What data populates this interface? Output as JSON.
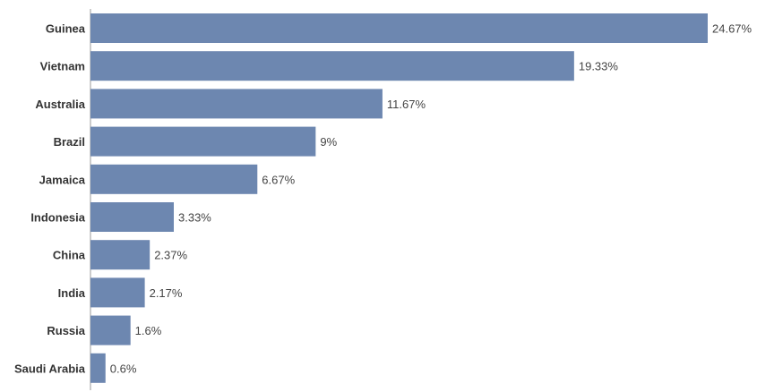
{
  "chart_data": {
    "type": "bar",
    "orientation": "horizontal",
    "categories": [
      "Guinea",
      "Vietnam",
      "Australia",
      "Brazil",
      "Jamaica",
      "Indonesia",
      "China",
      "India",
      "Russia",
      "Saudi Arabia"
    ],
    "values": [
      24.67,
      19.33,
      11.67,
      9,
      6.67,
      3.33,
      2.37,
      2.17,
      1.6,
      0.6
    ],
    "value_labels": [
      "24.67%",
      "19.33%",
      "11.67%",
      "9%",
      "6.67%",
      "3.33%",
      "2.37%",
      "2.17%",
      "1.6%",
      "0.6%"
    ],
    "title": "",
    "xlabel": "",
    "ylabel": "",
    "xlim": [
      0,
      24.67
    ],
    "grid": false,
    "legend": "none",
    "bar_color": "#6d87b0",
    "axis_color": "#999999"
  }
}
